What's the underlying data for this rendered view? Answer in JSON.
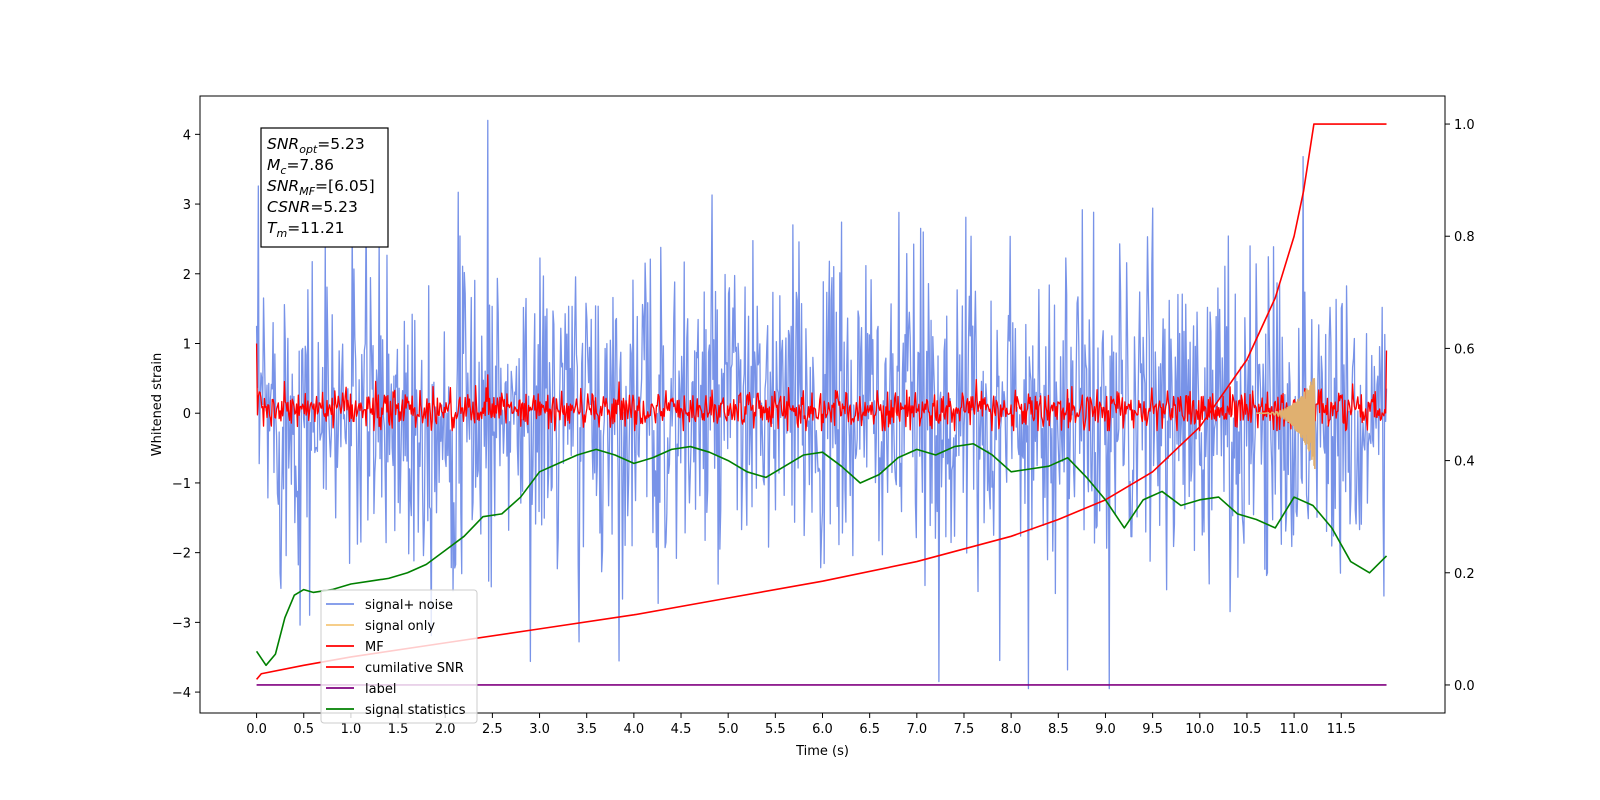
{
  "chart_data": {
    "type": "line",
    "xlabel": "Time (s)",
    "ylabel": "Whitened strain",
    "xlim": [
      -0.6,
      12.6
    ],
    "ylim_left": [
      -4.3,
      4.55
    ],
    "ylim_right": [
      -0.05,
      1.05
    ],
    "x_ticks": [
      "0.0",
      "0.5",
      "1.0",
      "1.5",
      "2.0",
      "2.5",
      "3.0",
      "3.5",
      "4.0",
      "4.5",
      "5.0",
      "5.5",
      "6.0",
      "6.5",
      "7.0",
      "7.5",
      "8.0",
      "8.5",
      "9.0",
      "9.5",
      "10.0",
      "10.5",
      "11.0",
      "11.5"
    ],
    "y_left_ticks": [
      "4",
      "3",
      "2",
      "1",
      "0",
      "−1",
      "−2",
      "−3",
      "−4"
    ],
    "y_right_ticks": [
      "1.0",
      "0.8",
      "0.6",
      "0.4",
      "0.2",
      "0.0"
    ],
    "info_box": [
      {
        "base": "SNR",
        "sub": "opt",
        "rest": "=5.23"
      },
      {
        "base": "M",
        "sub": "c",
        "rest": "=7.86"
      },
      {
        "base": "SNR",
        "sub": "MF",
        "rest": "=[6.05]"
      },
      {
        "base": "CSNR",
        "sub": "",
        "rest": "=5.23"
      },
      {
        "base": "T",
        "sub": "m",
        "rest": "=11.21"
      }
    ],
    "legend": {
      "placement": "lower-left",
      "entries": [
        {
          "label": "signal+ noise",
          "color": "#7893e8"
        },
        {
          "label": "signal only",
          "color": "#f5c77a"
        },
        {
          "label": "MF",
          "color": "#ff0000"
        },
        {
          "label": "cumilative SNR",
          "color": "#ff0000"
        },
        {
          "label": "label",
          "color": "#800080"
        },
        {
          "label": "signal statistics",
          "color": "#008000"
        }
      ]
    },
    "series": [
      {
        "name": "signal+ noise",
        "axis": "left",
        "kind": "noise",
        "color": "#7893e8",
        "x_range": [
          0.0,
          11.98
        ],
        "center": 0.0,
        "sigma": 1.0,
        "peak_max": 4.2,
        "peak_min": -3.95
      },
      {
        "name": "MF",
        "axis": "left",
        "kind": "noise",
        "color": "#ff0000",
        "x_range": [
          0.0,
          11.98
        ],
        "center": 0.05,
        "sigma": 0.12,
        "peak_max": 0.55,
        "peak_min": -0.25,
        "edge_values": [
          1.0,
          0.9
        ]
      },
      {
        "name": "signal only",
        "axis": "left",
        "kind": "chirp",
        "color": "#e0b070",
        "x_range": [
          10.6,
          11.22
        ],
        "peak_max": 0.55,
        "peak_min": -0.8
      },
      {
        "name": "cumilative SNR",
        "axis": "right",
        "color": "#ff0000",
        "x": [
          0.0,
          0.05,
          0.5,
          1.0,
          2.0,
          3.0,
          4.0,
          5.0,
          6.0,
          7.0,
          8.0,
          8.5,
          9.0,
          9.5,
          10.0,
          10.5,
          10.8,
          11.0,
          11.1,
          11.21,
          11.98
        ],
        "y": [
          0.01,
          0.02,
          0.035,
          0.05,
          0.075,
          0.1,
          0.125,
          0.155,
          0.185,
          0.22,
          0.265,
          0.295,
          0.33,
          0.38,
          0.46,
          0.58,
          0.69,
          0.8,
          0.88,
          1.0,
          1.0
        ]
      },
      {
        "name": "label",
        "axis": "right",
        "color": "#800080",
        "x": [
          0.0,
          11.98
        ],
        "y": [
          0.0,
          0.0
        ]
      },
      {
        "name": "signal statistics",
        "axis": "right",
        "color": "#008000",
        "x": [
          0.0,
          0.1,
          0.2,
          0.3,
          0.4,
          0.5,
          0.6,
          0.8,
          1.0,
          1.2,
          1.4,
          1.6,
          1.8,
          2.0,
          2.2,
          2.4,
          2.6,
          2.8,
          3.0,
          3.2,
          3.4,
          3.6,
          3.8,
          4.0,
          4.2,
          4.4,
          4.6,
          4.8,
          5.0,
          5.2,
          5.4,
          5.6,
          5.8,
          6.0,
          6.2,
          6.4,
          6.6,
          6.8,
          7.0,
          7.2,
          7.4,
          7.6,
          7.8,
          8.0,
          8.2,
          8.4,
          8.6,
          8.8,
          9.0,
          9.2,
          9.4,
          9.6,
          9.8,
          10.0,
          10.2,
          10.4,
          10.6,
          10.8,
          11.0,
          11.2,
          11.4,
          11.6,
          11.8,
          11.98
        ],
        "y": [
          0.06,
          0.035,
          0.055,
          0.12,
          0.16,
          0.17,
          0.165,
          0.17,
          0.18,
          0.185,
          0.19,
          0.2,
          0.215,
          0.24,
          0.265,
          0.3,
          0.305,
          0.335,
          0.38,
          0.395,
          0.41,
          0.42,
          0.41,
          0.395,
          0.405,
          0.42,
          0.425,
          0.415,
          0.4,
          0.38,
          0.37,
          0.39,
          0.41,
          0.415,
          0.39,
          0.36,
          0.375,
          0.405,
          0.42,
          0.41,
          0.425,
          0.43,
          0.41,
          0.38,
          0.385,
          0.39,
          0.405,
          0.37,
          0.33,
          0.28,
          0.33,
          0.345,
          0.32,
          0.33,
          0.335,
          0.305,
          0.295,
          0.28,
          0.335,
          0.32,
          0.28,
          0.22,
          0.2,
          0.23
        ]
      }
    ]
  }
}
